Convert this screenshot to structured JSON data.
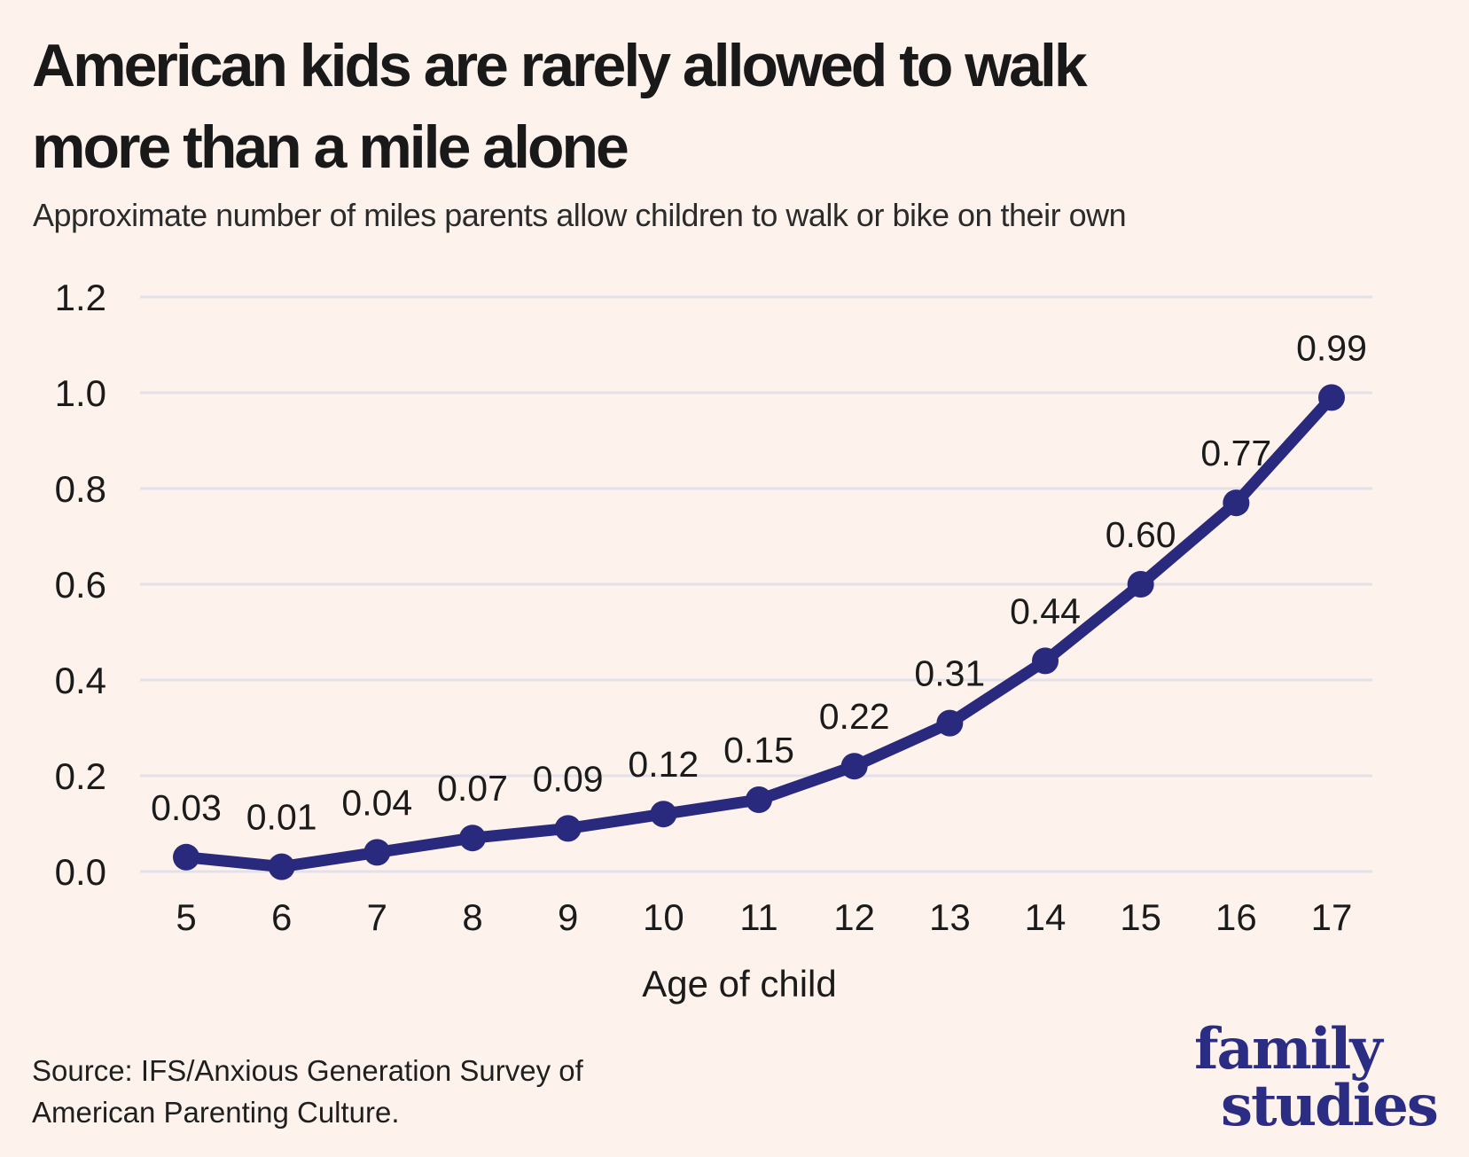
{
  "title": {
    "line1": "American kids are rarely allowed to walk",
    "line2": "more than a mile alone"
  },
  "subtitle": "Approximate number of miles parents allow children to walk or bike on their own",
  "source": {
    "line1": "Source: IFS/Anxious Generation Survey of",
    "line2": "American Parenting Culture."
  },
  "logo": {
    "line1": "family",
    "line2": "studies"
  },
  "colors": {
    "background": "#fdf3ec",
    "line": "#29297d",
    "point": "#29297d",
    "grid": "#e2e1ea",
    "text": "#1b1b1b",
    "logo": "#2b2c84"
  },
  "chart_data": {
    "type": "line",
    "x": [
      5,
      6,
      7,
      8,
      9,
      10,
      11,
      12,
      13,
      14,
      15,
      16,
      17
    ],
    "values": [
      0.03,
      0.01,
      0.04,
      0.07,
      0.09,
      0.12,
      0.15,
      0.22,
      0.31,
      0.44,
      0.6,
      0.77,
      0.99
    ],
    "point_labels": [
      "0.03",
      "0.01",
      "0.04",
      "0.07",
      "0.09",
      "0.12",
      "0.15",
      "0.22",
      "0.31",
      "0.44",
      "0.60",
      "0.77",
      "0.99"
    ],
    "xtick_labels": [
      "5",
      "6",
      "7",
      "8",
      "9",
      "10",
      "11",
      "12",
      "13",
      "14",
      "15",
      "16",
      "17"
    ],
    "ytick_values": [
      0.0,
      0.2,
      0.4,
      0.6,
      0.8,
      1.0,
      1.2
    ],
    "ytick_labels": [
      "0.0",
      "0.2",
      "0.4",
      "0.6",
      "0.8",
      "1.0",
      "1.2"
    ],
    "xlabel": "Age of child",
    "ylabel": "",
    "ylim": [
      0,
      1.2
    ],
    "grid": "horizontal",
    "legend": "none"
  }
}
